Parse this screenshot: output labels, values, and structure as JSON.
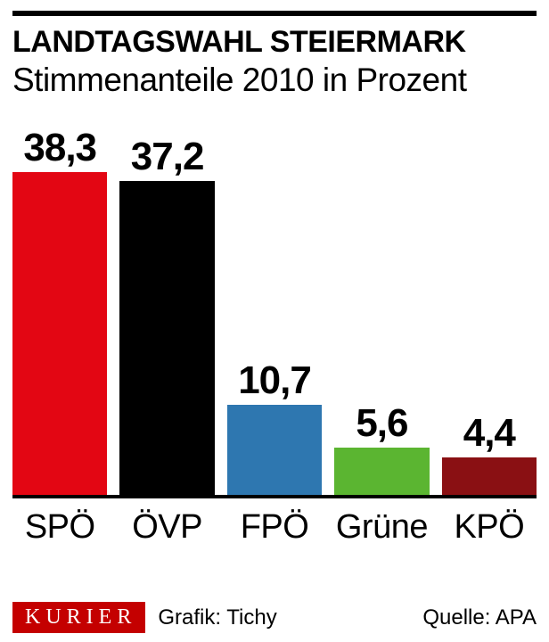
{
  "title": "LANDTAGSWAHL STEIERMARK",
  "subtitle": "Stimmenanteile 2010 in Prozent",
  "chart": {
    "type": "bar",
    "ylim_max": 40,
    "baseline_color": "#000000",
    "value_fontsize": 44,
    "label_fontsize": 38,
    "bars": [
      {
        "label": "SPÖ",
        "value": 38.3,
        "value_text": "38,3",
        "color": "#e30613",
        "value_color": "#000000"
      },
      {
        "label": "ÖVP",
        "value": 37.2,
        "value_text": "37,2",
        "color": "#000000",
        "value_color": "#000000"
      },
      {
        "label": "FPÖ",
        "value": 10.7,
        "value_text": "10,7",
        "color": "#2e77b0",
        "value_color": "#000000"
      },
      {
        "label": "Grüne",
        "value": 5.6,
        "value_text": "5,6",
        "color": "#5bb531",
        "value_color": "#000000"
      },
      {
        "label": "KPÖ",
        "value": 4.4,
        "value_text": "4,4",
        "color": "#8a1013",
        "value_color": "#000000"
      }
    ]
  },
  "footer": {
    "brand": "KURIER",
    "brand_bg": "#c40000",
    "brand_fg": "#ffffff",
    "credit": "Grafik: Tichy",
    "source": "Quelle: APA"
  }
}
